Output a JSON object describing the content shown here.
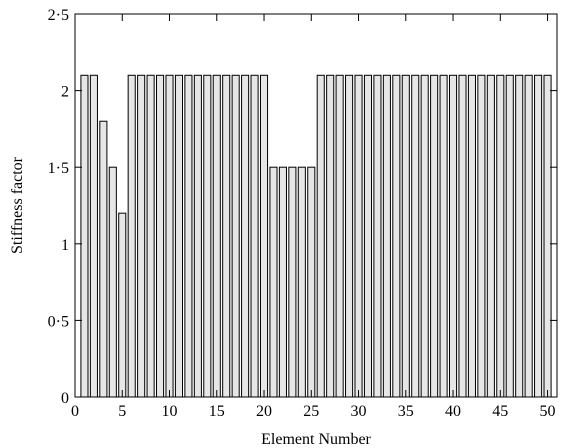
{
  "chart_data": {
    "type": "bar",
    "xlabel": "Element Number",
    "ylabel": "Stiffness factor",
    "xlim": [
      0,
      51
    ],
    "ylim": [
      0,
      2.5
    ],
    "x_ticks": [
      0,
      5,
      10,
      15,
      20,
      25,
      30,
      35,
      40,
      45,
      50
    ],
    "y_ticks": [
      0,
      0.5,
      1,
      1.5,
      2,
      2.5
    ],
    "y_tick_labels": [
      "0",
      "0·5",
      "1",
      "1·5",
      "2",
      "2·5"
    ],
    "grid": false,
    "bar_color": "#e6e6e6",
    "bar_edge_color": "#000000",
    "categories": [
      1,
      2,
      3,
      4,
      5,
      6,
      7,
      8,
      9,
      10,
      11,
      12,
      13,
      14,
      15,
      16,
      17,
      18,
      19,
      20,
      21,
      22,
      23,
      24,
      25,
      26,
      27,
      28,
      29,
      30,
      31,
      32,
      33,
      34,
      35,
      36,
      37,
      38,
      39,
      40,
      41,
      42,
      43,
      44,
      45,
      46,
      47,
      48,
      49,
      50
    ],
    "values": [
      2.1,
      2.1,
      1.8,
      1.5,
      1.2,
      2.1,
      2.1,
      2.1,
      2.1,
      2.1,
      2.1,
      2.1,
      2.1,
      2.1,
      2.1,
      2.1,
      2.1,
      2.1,
      2.1,
      2.1,
      1.5,
      1.5,
      1.5,
      1.5,
      1.5,
      2.1,
      2.1,
      2.1,
      2.1,
      2.1,
      2.1,
      2.1,
      2.1,
      2.1,
      2.1,
      2.1,
      2.1,
      2.1,
      2.1,
      2.1,
      2.1,
      2.1,
      2.1,
      2.1,
      2.1,
      2.1,
      2.1,
      2.1,
      2.1,
      2.1
    ]
  }
}
